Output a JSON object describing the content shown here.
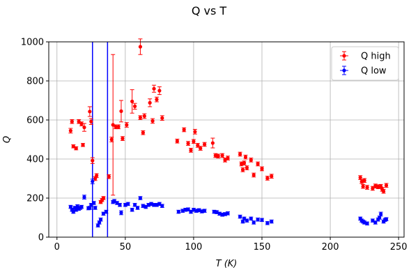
{
  "chart_data": {
    "type": "scatter",
    "title": "Q vs T",
    "xlabel": "T (K)",
    "ylabel": "Q",
    "xlim": [
      -6,
      254
    ],
    "ylim": [
      0,
      1000
    ],
    "xticks": [
      0,
      50,
      100,
      150,
      200,
      250
    ],
    "yticks": [
      0,
      200,
      400,
      600,
      800,
      1000
    ],
    "grid": true,
    "legend_position": "top-right",
    "vlines": [
      {
        "x": 26,
        "color": "#0000ff"
      },
      {
        "x": 37,
        "color": "#0000ff"
      }
    ],
    "series": [
      {
        "name": "Q high",
        "color": "#ff0000",
        "points": [
          {
            "x": 10,
            "y": 545,
            "err": 12
          },
          {
            "x": 11,
            "y": 592,
            "err": 10
          },
          {
            "x": 12,
            "y": 465,
            "err": 8
          },
          {
            "x": 14,
            "y": 455,
            "err": 8
          },
          {
            "x": 16,
            "y": 592,
            "err": 10
          },
          {
            "x": 18,
            "y": 580,
            "err": 10
          },
          {
            "x": 19,
            "y": 472,
            "err": 8
          },
          {
            "x": 20,
            "y": 562,
            "err": 20
          },
          {
            "x": 24,
            "y": 643,
            "err": 25
          },
          {
            "x": 25,
            "y": 592,
            "err": 15
          },
          {
            "x": 26,
            "y": 392,
            "err": 15
          },
          {
            "x": 28,
            "y": 300,
            "err": 10
          },
          {
            "x": 29,
            "y": 315,
            "err": 10
          },
          {
            "x": 32,
            "y": 180,
            "err": 8
          },
          {
            "x": 33,
            "y": 190,
            "err": 8
          },
          {
            "x": 34,
            "y": 200,
            "err": 8
          },
          {
            "x": 38,
            "y": 310,
            "err": 10
          },
          {
            "x": 40,
            "y": 500,
            "err": 12
          },
          {
            "x": 41,
            "y": 575,
            "err": 360
          },
          {
            "x": 43,
            "y": 565,
            "err": 10
          },
          {
            "x": 45,
            "y": 565,
            "err": 10
          },
          {
            "x": 47,
            "y": 645,
            "err": 55
          },
          {
            "x": 48,
            "y": 505,
            "err": 10
          },
          {
            "x": 51,
            "y": 575,
            "err": 12
          },
          {
            "x": 55,
            "y": 695,
            "err": 60
          },
          {
            "x": 57,
            "y": 670,
            "err": 15
          },
          {
            "x": 61,
            "y": 975,
            "err": 40
          },
          {
            "x": 61,
            "y": 612,
            "err": 10
          },
          {
            "x": 63,
            "y": 535,
            "err": 10
          },
          {
            "x": 64,
            "y": 620,
            "err": 12
          },
          {
            "x": 68,
            "y": 688,
            "err": 20
          },
          {
            "x": 70,
            "y": 595,
            "err": 12
          },
          {
            "x": 71,
            "y": 760,
            "err": 18
          },
          {
            "x": 73,
            "y": 705,
            "err": 12
          },
          {
            "x": 75,
            "y": 750,
            "err": 20
          },
          {
            "x": 77,
            "y": 610,
            "err": 12
          },
          {
            "x": 88,
            "y": 492,
            "err": 10
          },
          {
            "x": 93,
            "y": 550,
            "err": 10
          },
          {
            "x": 96,
            "y": 480,
            "err": 10
          },
          {
            "x": 98,
            "y": 445,
            "err": 10
          },
          {
            "x": 100,
            "y": 490,
            "err": 10
          },
          {
            "x": 101,
            "y": 540,
            "err": 12
          },
          {
            "x": 103,
            "y": 470,
            "err": 10
          },
          {
            "x": 105,
            "y": 455,
            "err": 10
          },
          {
            "x": 108,
            "y": 475,
            "err": 10
          },
          {
            "x": 114,
            "y": 482,
            "err": 25
          },
          {
            "x": 116,
            "y": 418,
            "err": 10
          },
          {
            "x": 118,
            "y": 415,
            "err": 10
          },
          {
            "x": 121,
            "y": 418,
            "err": 10
          },
          {
            "x": 123,
            "y": 395,
            "err": 10
          },
          {
            "x": 125,
            "y": 405,
            "err": 10
          },
          {
            "x": 134,
            "y": 425,
            "err": 10
          },
          {
            "x": 135,
            "y": 375,
            "err": 10
          },
          {
            "x": 136,
            "y": 345,
            "err": 10
          },
          {
            "x": 137,
            "y": 380,
            "err": 10
          },
          {
            "x": 138,
            "y": 410,
            "err": 10
          },
          {
            "x": 139,
            "y": 355,
            "err": 10
          },
          {
            "x": 142,
            "y": 395,
            "err": 10
          },
          {
            "x": 144,
            "y": 318,
            "err": 10
          },
          {
            "x": 147,
            "y": 375,
            "err": 10
          },
          {
            "x": 150,
            "y": 350,
            "err": 10
          },
          {
            "x": 154,
            "y": 302,
            "err": 10
          },
          {
            "x": 157,
            "y": 312,
            "err": 10
          },
          {
            "x": 222,
            "y": 305,
            "err": 10
          },
          {
            "x": 223,
            "y": 285,
            "err": 10
          },
          {
            "x": 224,
            "y": 260,
            "err": 10
          },
          {
            "x": 225,
            "y": 290,
            "err": 10
          },
          {
            "x": 227,
            "y": 255,
            "err": 10
          },
          {
            "x": 231,
            "y": 250,
            "err": 10
          },
          {
            "x": 233,
            "y": 262,
            "err": 10
          },
          {
            "x": 235,
            "y": 258,
            "err": 10
          },
          {
            "x": 237,
            "y": 260,
            "err": 10
          },
          {
            "x": 238,
            "y": 245,
            "err": 10
          },
          {
            "x": 239,
            "y": 235,
            "err": 10
          },
          {
            "x": 241,
            "y": 265,
            "err": 10
          }
        ]
      },
      {
        "name": "Q low",
        "color": "#0000ff",
        "points": [
          {
            "x": 10,
            "y": 155,
            "err": 8
          },
          {
            "x": 11,
            "y": 140,
            "err": 8
          },
          {
            "x": 12,
            "y": 130,
            "err": 8
          },
          {
            "x": 13,
            "y": 150,
            "err": 8
          },
          {
            "x": 14,
            "y": 140,
            "err": 8
          },
          {
            "x": 15,
            "y": 158,
            "err": 8
          },
          {
            "x": 16,
            "y": 145,
            "err": 8
          },
          {
            "x": 17,
            "y": 150,
            "err": 8
          },
          {
            "x": 18,
            "y": 155,
            "err": 8
          },
          {
            "x": 20,
            "y": 205,
            "err": 10
          },
          {
            "x": 23,
            "y": 148,
            "err": 8
          },
          {
            "x": 24,
            "y": 150,
            "err": 8
          },
          {
            "x": 25,
            "y": 165,
            "err": 8
          },
          {
            "x": 26,
            "y": 285,
            "err": 12
          },
          {
            "x": 27,
            "y": 175,
            "err": 8
          },
          {
            "x": 28,
            "y": 150,
            "err": 8
          },
          {
            "x": 30,
            "y": 60,
            "err": 8
          },
          {
            "x": 31,
            "y": 75,
            "err": 8
          },
          {
            "x": 32,
            "y": 90,
            "err": 8
          },
          {
            "x": 34,
            "y": 120,
            "err": 8
          },
          {
            "x": 36,
            "y": 130,
            "err": 8
          },
          {
            "x": 41,
            "y": 180,
            "err": 8
          },
          {
            "x": 42,
            "y": 185,
            "err": 8
          },
          {
            "x": 44,
            "y": 175,
            "err": 8
          },
          {
            "x": 46,
            "y": 165,
            "err": 8
          },
          {
            "x": 47,
            "y": 125,
            "err": 10
          },
          {
            "x": 50,
            "y": 165,
            "err": 8
          },
          {
            "x": 52,
            "y": 170,
            "err": 8
          },
          {
            "x": 55,
            "y": 140,
            "err": 8
          },
          {
            "x": 57,
            "y": 165,
            "err": 8
          },
          {
            "x": 59,
            "y": 150,
            "err": 8
          },
          {
            "x": 61,
            "y": 200,
            "err": 8
          },
          {
            "x": 63,
            "y": 160,
            "err": 8
          },
          {
            "x": 65,
            "y": 155,
            "err": 8
          },
          {
            "x": 67,
            "y": 165,
            "err": 8
          },
          {
            "x": 69,
            "y": 170,
            "err": 8
          },
          {
            "x": 71,
            "y": 165,
            "err": 8
          },
          {
            "x": 73,
            "y": 165,
            "err": 8
          },
          {
            "x": 75,
            "y": 170,
            "err": 8
          },
          {
            "x": 77,
            "y": 160,
            "err": 8
          },
          {
            "x": 89,
            "y": 130,
            "err": 8
          },
          {
            "x": 92,
            "y": 135,
            "err": 8
          },
          {
            "x": 94,
            "y": 140,
            "err": 8
          },
          {
            "x": 96,
            "y": 142,
            "err": 8
          },
          {
            "x": 98,
            "y": 130,
            "err": 8
          },
          {
            "x": 100,
            "y": 140,
            "err": 8
          },
          {
            "x": 102,
            "y": 135,
            "err": 8
          },
          {
            "x": 104,
            "y": 138,
            "err": 8
          },
          {
            "x": 106,
            "y": 132,
            "err": 8
          },
          {
            "x": 108,
            "y": 135,
            "err": 8
          },
          {
            "x": 115,
            "y": 130,
            "err": 8
          },
          {
            "x": 117,
            "y": 128,
            "err": 8
          },
          {
            "x": 119,
            "y": 120,
            "err": 8
          },
          {
            "x": 121,
            "y": 115,
            "err": 8
          },
          {
            "x": 123,
            "y": 118,
            "err": 8
          },
          {
            "x": 125,
            "y": 122,
            "err": 8
          },
          {
            "x": 134,
            "y": 105,
            "err": 8
          },
          {
            "x": 136,
            "y": 80,
            "err": 8
          },
          {
            "x": 137,
            "y": 95,
            "err": 8
          },
          {
            "x": 139,
            "y": 85,
            "err": 8
          },
          {
            "x": 142,
            "y": 95,
            "err": 8
          },
          {
            "x": 144,
            "y": 75,
            "err": 8
          },
          {
            "x": 147,
            "y": 90,
            "err": 8
          },
          {
            "x": 150,
            "y": 88,
            "err": 8
          },
          {
            "x": 154,
            "y": 72,
            "err": 8
          },
          {
            "x": 157,
            "y": 80,
            "err": 8
          },
          {
            "x": 222,
            "y": 95,
            "err": 8
          },
          {
            "x": 223,
            "y": 85,
            "err": 8
          },
          {
            "x": 224,
            "y": 80,
            "err": 8
          },
          {
            "x": 225,
            "y": 75,
            "err": 8
          },
          {
            "x": 227,
            "y": 70,
            "err": 8
          },
          {
            "x": 231,
            "y": 85,
            "err": 8
          },
          {
            "x": 233,
            "y": 75,
            "err": 8
          },
          {
            "x": 235,
            "y": 90,
            "err": 8
          },
          {
            "x": 236,
            "y": 100,
            "err": 8
          },
          {
            "x": 237,
            "y": 118,
            "err": 10
          },
          {
            "x": 239,
            "y": 80,
            "err": 8
          },
          {
            "x": 240,
            "y": 88,
            "err": 8
          },
          {
            "x": 241,
            "y": 92,
            "err": 8
          }
        ]
      }
    ]
  }
}
